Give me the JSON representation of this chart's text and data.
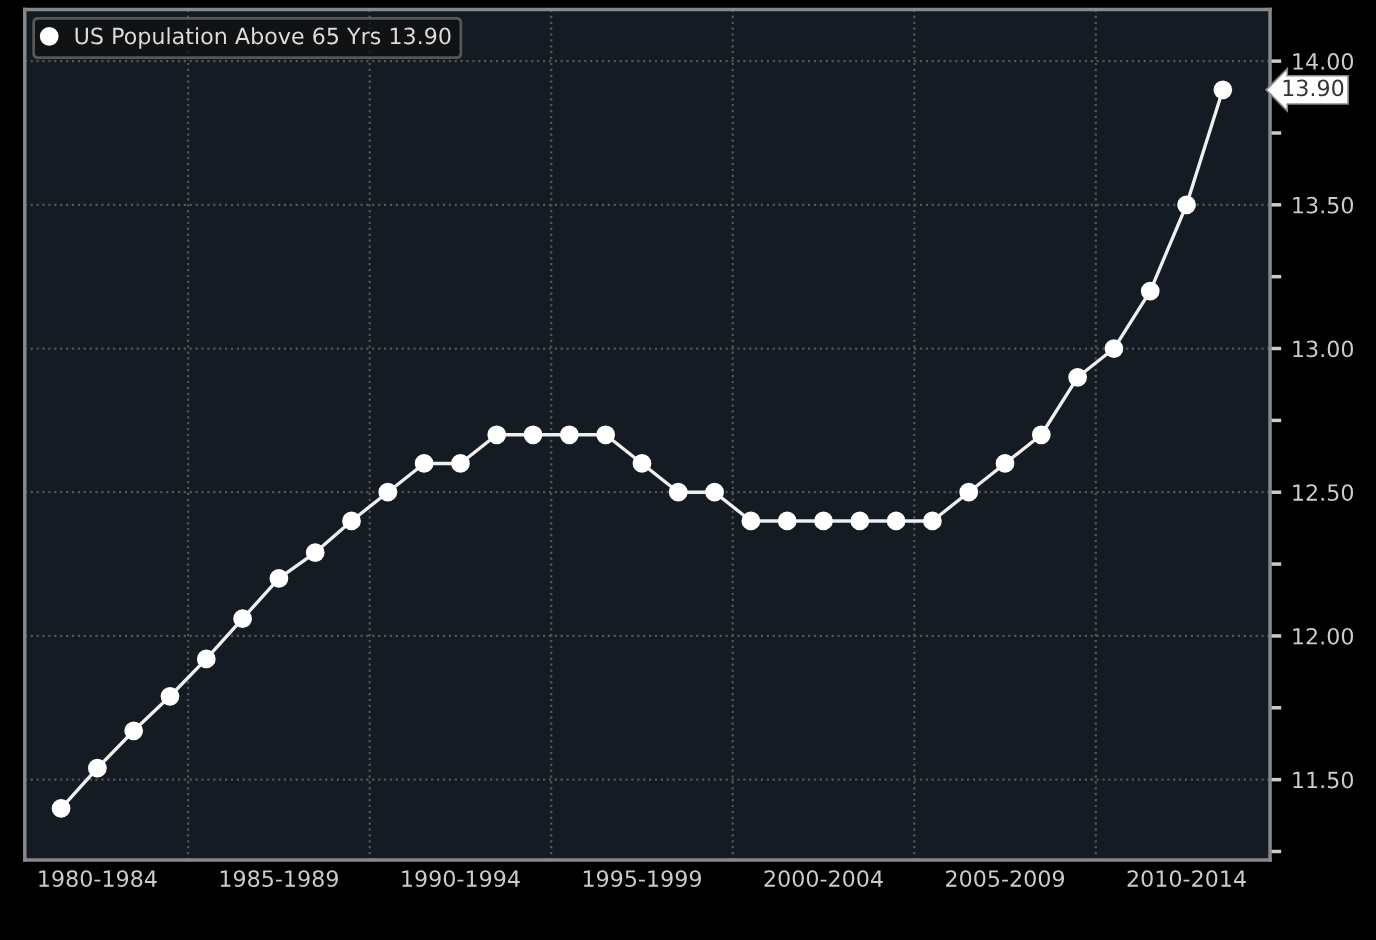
{
  "chart_data": {
    "type": "line",
    "categories": [
      null,
      "1980-1984",
      null,
      null,
      null,
      null,
      "1985-1989",
      null,
      null,
      null,
      null,
      "1990-1994",
      null,
      null,
      null,
      null,
      "1995-1999",
      null,
      null,
      null,
      null,
      "2000-2004",
      null,
      null,
      null,
      null,
      "2005-2009",
      null,
      null,
      null,
      null,
      "2010-2014",
      null
    ],
    "series": [
      {
        "name": "US Population Above 65 Yrs 13.90",
        "color": "#f0f0f0",
        "values": [
          11.4,
          11.54,
          11.67,
          11.79,
          11.92,
          12.06,
          12.2,
          12.29,
          12.4,
          12.5,
          12.6,
          12.6,
          12.7,
          12.7,
          12.7,
          12.7,
          12.6,
          12.5,
          12.5,
          12.4,
          12.4,
          12.4,
          12.4,
          12.4,
          12.4,
          12.5,
          12.6,
          12.7,
          12.9,
          13.0,
          13.2,
          13.5,
          13.9
        ]
      }
    ],
    "ylim": [
      11.22,
      14.18
    ],
    "yticks": [
      {
        "value": 11.25,
        "label": null
      },
      {
        "value": 11.5,
        "label": "11.50"
      },
      {
        "value": 11.75,
        "label": null
      },
      {
        "value": 12,
        "label": "12.00"
      },
      {
        "value": 12.25,
        "label": null
      },
      {
        "value": 12.5,
        "label": "12.50"
      },
      {
        "value": 12.75,
        "label": null
      },
      {
        "value": 13,
        "label": "13.00"
      },
      {
        "value": 13.25,
        "label": null
      },
      {
        "value": 13.5,
        "label": "13.50"
      },
      {
        "value": 13.75,
        "label": null
      },
      {
        "value": 14,
        "label": "14.00"
      }
    ],
    "annotations": [
      "13.90"
    ],
    "grid": true,
    "legend": "top left",
    "marker": "circle",
    "line_style": "solid"
  }
}
